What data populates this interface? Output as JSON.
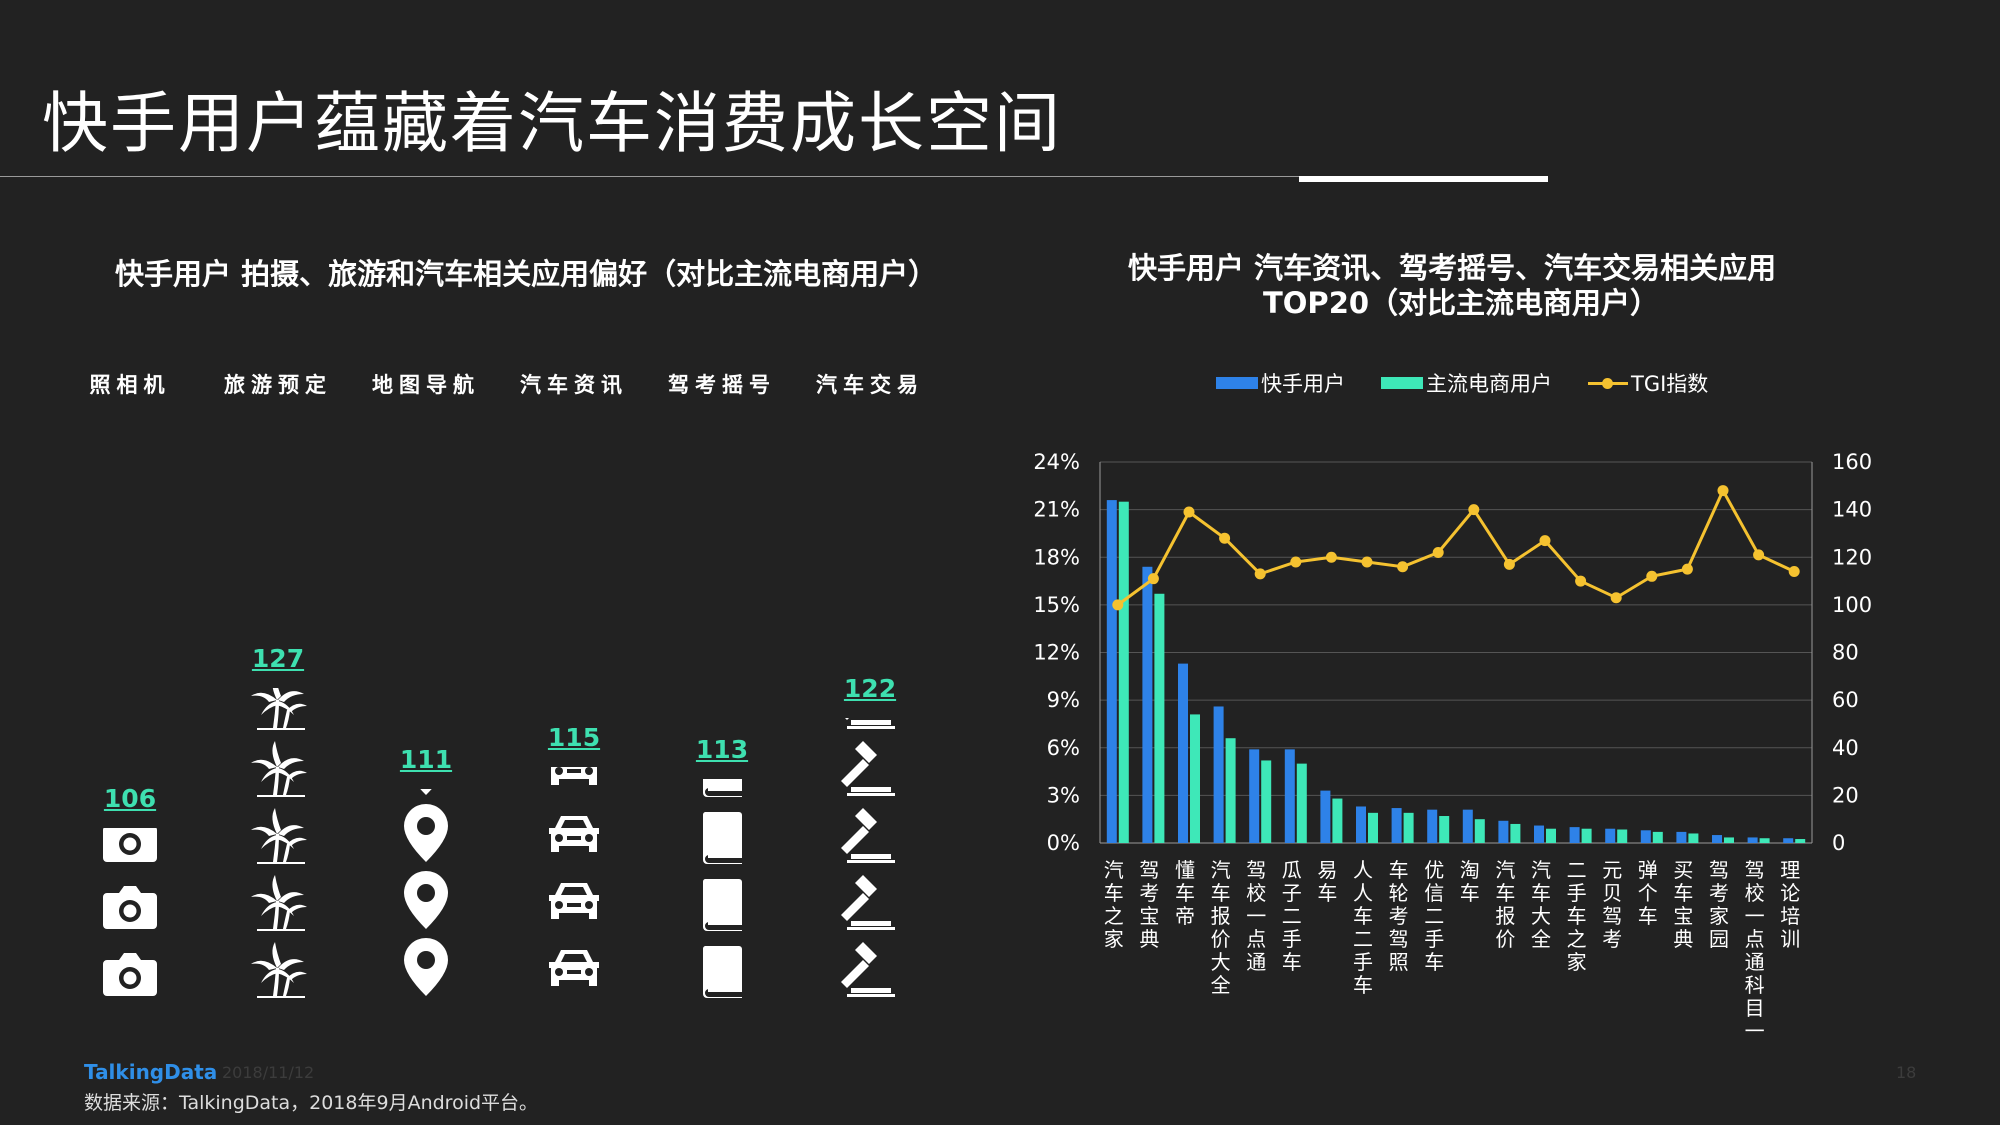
{
  "header": {
    "title": "快手用户蕴藏着汽车消费成长空间"
  },
  "left_panel": {
    "title": "快手用户  拍摄、旅游和汽车相关应用偏好（对比主流电商用户）",
    "categories": [
      {
        "label": "照相机",
        "value": "106",
        "icon": "camera-icon"
      },
      {
        "label": "旅游预定",
        "value": "127",
        "icon": "palm-tree-icon"
      },
      {
        "label": "地图导航",
        "value": "111",
        "icon": "map-pin-icon"
      },
      {
        "label": "汽车资讯",
        "value": "115",
        "icon": "car-icon"
      },
      {
        "label": "驾考摇号",
        "value": "113",
        "icon": "book-icon"
      },
      {
        "label": "汽车交易",
        "value": "122",
        "icon": "gavel-icon"
      }
    ]
  },
  "right_panel": {
    "title_line1": "快手用户  汽车资讯、驾考摇号、汽车交易相关应用",
    "title_line2": "TOP20（对比主流电商用户）"
  },
  "legend": {
    "series1": "快手用户",
    "series2": "主流电商用户",
    "series3": "TGI指数"
  },
  "colors": {
    "kuaishou": "#2e82e8",
    "ecommerce": "#3ee8b8",
    "tgi": "#f5c230",
    "value_text": "#3ee0b0"
  },
  "chart_data": [
    {
      "type": "pictograph",
      "categories": [
        "照相机",
        "旅游预定",
        "地图导航",
        "汽车资讯",
        "驾考摇号",
        "汽车交易"
      ],
      "values": [
        106,
        127,
        111,
        115,
        113,
        122
      ]
    },
    {
      "type": "bar",
      "title": "快手用户  汽车资讯、驾考摇号、汽车交易相关应用 TOP20（对比主流电商用户）",
      "categories": [
        "汽车之家",
        "驾考宝典",
        "懂车帝",
        "汽车报价大全",
        "驾校一点通",
        "瓜子二手车",
        "易车",
        "人人车二手车",
        "车轮考驾照",
        "优信二手车",
        "淘车",
        "汽车报价",
        "汽车大全",
        "二手车之家",
        "元贝驾考",
        "弹个车",
        "买车宝典",
        "驾考家园",
        "驾校一点通科目一",
        "理论培训"
      ],
      "series": [
        {
          "name": "快手用户",
          "type": "bar",
          "axis": "left",
          "values": [
            21.6,
            17.4,
            11.3,
            8.6,
            5.9,
            5.9,
            3.3,
            2.3,
            2.2,
            2.1,
            2.1,
            1.4,
            1.1,
            1.0,
            0.9,
            0.8,
            0.7,
            0.5,
            0.35,
            0.3
          ]
        },
        {
          "name": "主流电商用户",
          "type": "bar",
          "axis": "left",
          "values": [
            21.5,
            15.7,
            8.1,
            6.6,
            5.2,
            5.0,
            2.8,
            1.9,
            1.9,
            1.7,
            1.5,
            1.2,
            0.9,
            0.9,
            0.85,
            0.7,
            0.6,
            0.35,
            0.3,
            0.25
          ]
        },
        {
          "name": "TGI指数",
          "type": "line",
          "axis": "right",
          "values": [
            100,
            111,
            139,
            128,
            113,
            118,
            120,
            118,
            116,
            122,
            140,
            117,
            127,
            110,
            103,
            112,
            115,
            148,
            121,
            114
          ]
        }
      ],
      "y_left": {
        "min": 0,
        "max": 24,
        "ticks": [
          "0%",
          "3%",
          "6%",
          "9%",
          "12%",
          "15%",
          "18%",
          "21%",
          "24%"
        ]
      },
      "y_right": {
        "min": 0,
        "max": 160,
        "ticks": [
          "0",
          "20",
          "40",
          "60",
          "80",
          "100",
          "120",
          "140",
          "160"
        ]
      },
      "grid": true,
      "legend_position": "top"
    }
  ],
  "footer": {
    "logo": "TalkingData",
    "date": "2018/11/12",
    "source": "数据来源：TalkingData，2018年9月Android平台。",
    "page": "18"
  }
}
